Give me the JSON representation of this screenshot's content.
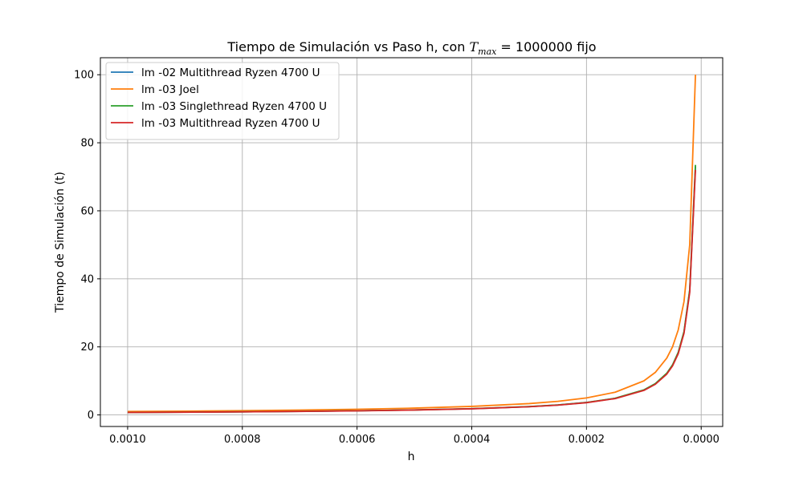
{
  "chart_data": {
    "type": "line",
    "title": "Tiempo de Simulación vs Paso h, con ",
    "title_math_var": "T",
    "title_math_sub": "max",
    "title_math_rest": " = 1000000",
    "title_suffix": " fijo",
    "xlabel": "h",
    "ylabel": "Tiempo de Simulación (t)",
    "xlim": [
      0.0010475,
      -3.75e-05
    ],
    "ylim": [
      -3.4,
      105
    ],
    "x_inverted": true,
    "grid": true,
    "legend_position": "upper-left",
    "x_ticks": [
      0.001,
      0.0008,
      0.0006,
      0.0004,
      0.0002,
      0.0
    ],
    "x_tick_labels": [
      "0.0010",
      "0.0008",
      "0.0006",
      "0.0004",
      "0.0002",
      "0.0000"
    ],
    "y_ticks": [
      0,
      20,
      40,
      60,
      80,
      100
    ],
    "y_tick_labels": [
      "0",
      "20",
      "40",
      "60",
      "80",
      "100"
    ],
    "series": [
      {
        "name": "lm -02 Multithread Ryzen 4700 U",
        "color": "#1f77b4",
        "x": [
          0.001,
          0.0009,
          0.0008,
          0.0007,
          0.0006,
          0.0005,
          0.0004,
          0.0003,
          0.00025,
          0.0002,
          0.00015,
          0.0001,
          8e-05,
          6e-05,
          5e-05,
          4e-05,
          3e-05,
          2e-05,
          1e-05
        ],
        "y": [
          0.73,
          0.81,
          0.91,
          1.04,
          1.22,
          1.46,
          1.82,
          2.43,
          2.92,
          3.65,
          4.87,
          7.3,
          9.13,
          12.2,
          14.6,
          18.3,
          24.3,
          36.5,
          73.0
        ]
      },
      {
        "name": "lm -03 Joel",
        "color": "#ff7f0e",
        "x": [
          0.001,
          0.0009,
          0.0008,
          0.0007,
          0.0006,
          0.0005,
          0.0004,
          0.0003,
          0.00025,
          0.0002,
          0.00015,
          0.0001,
          8e-05,
          6e-05,
          5e-05,
          4e-05,
          3e-05,
          2e-05,
          1e-05
        ],
        "y": [
          1.0,
          1.11,
          1.25,
          1.43,
          1.67,
          2.0,
          2.5,
          3.33,
          4.0,
          5.0,
          6.67,
          10.0,
          12.5,
          16.7,
          20.0,
          25.0,
          33.3,
          50.0,
          100.0
        ]
      },
      {
        "name": "lm -03 Singlethread Ryzen 4700 U",
        "color": "#2ca02c",
        "x": [
          0.001,
          0.0009,
          0.0008,
          0.0007,
          0.0006,
          0.0005,
          0.0004,
          0.0003,
          0.00025,
          0.0002,
          0.00015,
          0.0001,
          8e-05,
          6e-05,
          5e-05,
          4e-05,
          3e-05,
          2e-05,
          1e-05
        ],
        "y": [
          0.74,
          0.82,
          0.92,
          1.05,
          1.23,
          1.47,
          1.84,
          2.45,
          2.94,
          3.68,
          4.9,
          7.35,
          9.19,
          12.25,
          14.7,
          18.4,
          24.5,
          36.8,
          73.5
        ]
      },
      {
        "name": "lm -03 Multithread Ryzen 4700 U",
        "color": "#d62728",
        "x": [
          0.001,
          0.0009,
          0.0008,
          0.0007,
          0.0006,
          0.0005,
          0.0004,
          0.0003,
          0.00025,
          0.0002,
          0.00015,
          0.0001,
          8e-05,
          6e-05,
          5e-05,
          4e-05,
          3e-05,
          2e-05,
          1e-05
        ],
        "y": [
          0.72,
          0.8,
          0.9,
          1.03,
          1.2,
          1.44,
          1.8,
          2.4,
          2.88,
          3.6,
          4.8,
          7.2,
          9.0,
          12.0,
          14.4,
          18.0,
          24.0,
          36.0,
          72.0
        ]
      }
    ]
  }
}
